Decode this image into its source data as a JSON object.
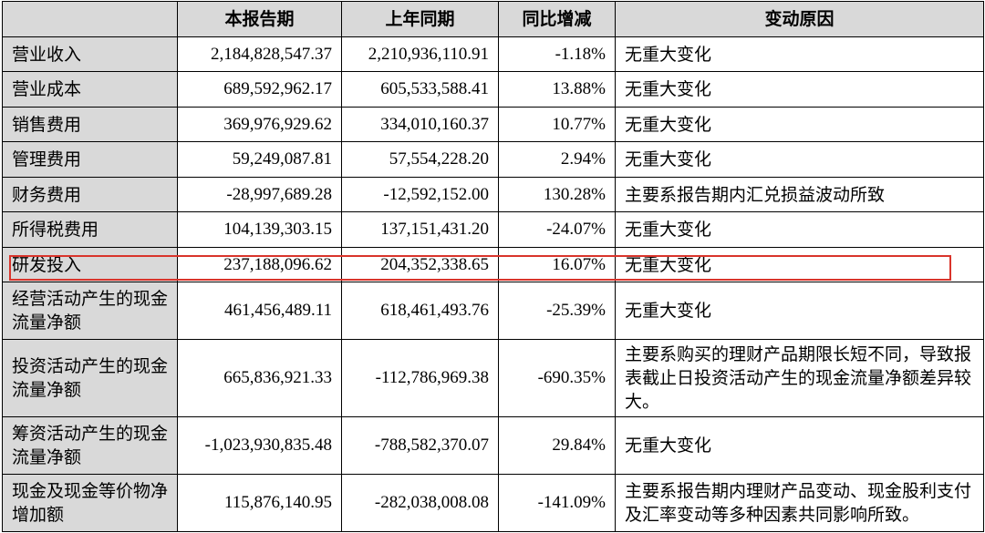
{
  "headers": [
    "",
    "本报告期",
    "上年同期",
    "同比增减",
    "变动原因"
  ],
  "rows": [
    {
      "label": "营业收入",
      "current": "2,184,828,547.37",
      "prior": "2,210,936,110.91",
      "change": "-1.18%",
      "reason": "无重大变化"
    },
    {
      "label": "营业成本",
      "current": "689,592,962.17",
      "prior": "605,533,588.41",
      "change": "13.88%",
      "reason": "无重大变化"
    },
    {
      "label": "销售费用",
      "current": "369,976,929.62",
      "prior": "334,010,160.37",
      "change": "10.77%",
      "reason": "无重大变化"
    },
    {
      "label": "管理费用",
      "current": "59,249,087.81",
      "prior": "57,554,228.20",
      "change": "2.94%",
      "reason": "无重大变化"
    },
    {
      "label": "财务费用",
      "current": "-28,997,689.28",
      "prior": "-12,592,152.00",
      "change": "130.28%",
      "reason": "主要系报告期内汇兑损益波动所致"
    },
    {
      "label": "所得税费用",
      "current": "104,139,303.15",
      "prior": "137,151,431.20",
      "change": "-24.07%",
      "reason": "无重大变化"
    },
    {
      "label": "研发投入",
      "current": "237,188,096.62",
      "prior": "204,352,338.65",
      "change": "16.07%",
      "reason": "无重大变化"
    },
    {
      "label": "经营活动产生的现金流量净额",
      "current": "461,456,489.11",
      "prior": "618,461,493.76",
      "change": "-25.39%",
      "reason": "无重大变化"
    },
    {
      "label": "投资活动产生的现金流量净额",
      "current": "665,836,921.33",
      "prior": "-112,786,969.38",
      "change": "-690.35%",
      "reason": "主要系购买的理财产品期限长短不同，导致报表截止日投资活动产生的现金流量净额差异较大。"
    },
    {
      "label": "筹资活动产生的现金流量净额",
      "current": "-1,023,930,835.48",
      "prior": "-788,582,370.07",
      "change": "29.84%",
      "reason": "无重大变化"
    },
    {
      "label": "现金及现金等价物净增加额",
      "current": "115,876,140.95",
      "prior": "-282,038,008.08",
      "change": "-141.09%",
      "reason": "主要系报告期内理财产品变动、现金股利支付及汇率变动等多种因素共同影响所致。"
    }
  ],
  "highlight": {
    "row_label": "研发投入",
    "color": "#d9342b"
  },
  "colors": {
    "header_bg": "#d9d9d9",
    "label_bg": "#d9d9d9",
    "border": "#000000"
  }
}
